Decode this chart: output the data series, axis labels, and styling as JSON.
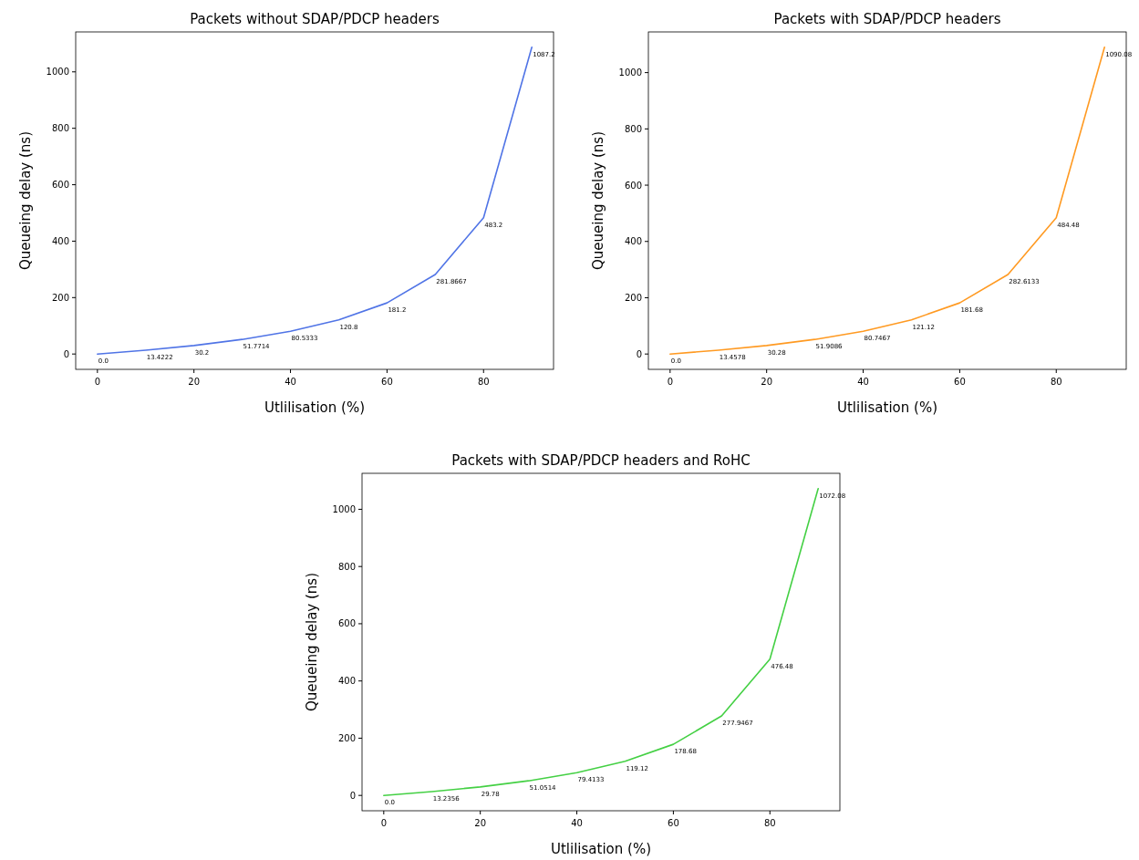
{
  "chart_data": [
    {
      "type": "line",
      "title": "Packets without SDAP/PDCP headers",
      "xlabel": "Utlilisation (%)",
      "ylabel": "Queueing delay (ns)",
      "x": [
        0,
        10,
        20,
        30,
        40,
        50,
        60,
        70,
        80,
        90
      ],
      "series": [
        {
          "color": "#5074e6",
          "values": [
            0,
            13.4222,
            30.2,
            51.7714,
            80.5333,
            120.8,
            181.2,
            281.8667,
            483.2,
            1087.2
          ],
          "value_labels": [
            "0.0",
            "13.4222",
            "30.2",
            "51.7714",
            "80.5333",
            "120.8",
            "181.2",
            "281.8667",
            "483.2",
            "1087.2"
          ]
        }
      ],
      "xlim": [
        -4.5,
        94.5
      ],
      "ylim": [
        -54.36,
        1141.56
      ],
      "xticks": [
        0,
        20,
        40,
        60,
        80
      ],
      "yticks": [
        0,
        200,
        400,
        600,
        800,
        1000
      ]
    },
    {
      "type": "line",
      "title": "Packets with SDAP/PDCP headers",
      "xlabel": "Utlilisation (%)",
      "ylabel": "Queueing delay (ns)",
      "x": [
        0,
        10,
        20,
        30,
        40,
        50,
        60,
        70,
        80,
        90
      ],
      "series": [
        {
          "color": "#ff9a22",
          "values": [
            0,
            13.4578,
            30.28,
            51.9086,
            80.7467,
            121.12,
            181.68,
            282.6133,
            484.48,
            1090.08
          ],
          "value_labels": [
            "0.0",
            "13.4578",
            "30.28",
            "51.9086",
            "80.7467",
            "121.12",
            "181.68",
            "282.6133",
            "484.48",
            "1090.08"
          ]
        }
      ],
      "xlim": [
        -4.5,
        94.5
      ],
      "ylim": [
        -54.5,
        1144.6
      ],
      "xticks": [
        0,
        20,
        40,
        60,
        80
      ],
      "yticks": [
        0,
        200,
        400,
        600,
        800,
        1000
      ]
    },
    {
      "type": "line",
      "title": "Packets with SDAP/PDCP headers and RoHC",
      "xlabel": "Utlilisation (%)",
      "ylabel": "Queueing delay (ns)",
      "x": [
        0,
        10,
        20,
        30,
        40,
        50,
        60,
        70,
        80,
        90
      ],
      "series": [
        {
          "color": "#44d044",
          "values": [
            0,
            13.2356,
            29.78,
            51.0514,
            79.4133,
            119.12,
            178.68,
            277.9467,
            476.48,
            1072.08
          ],
          "value_labels": [
            "0.0",
            "13.2356",
            "29.78",
            "51.0514",
            "79.4133",
            "119.12",
            "178.68",
            "277.9467",
            "476.48",
            "1072.08"
          ]
        }
      ],
      "xlim": [
        -4.5,
        94.5
      ],
      "ylim": [
        -53.6,
        1125.7
      ],
      "xticks": [
        0,
        20,
        40,
        60,
        80
      ],
      "yticks": [
        0,
        200,
        400,
        600,
        800,
        1000
      ]
    }
  ]
}
